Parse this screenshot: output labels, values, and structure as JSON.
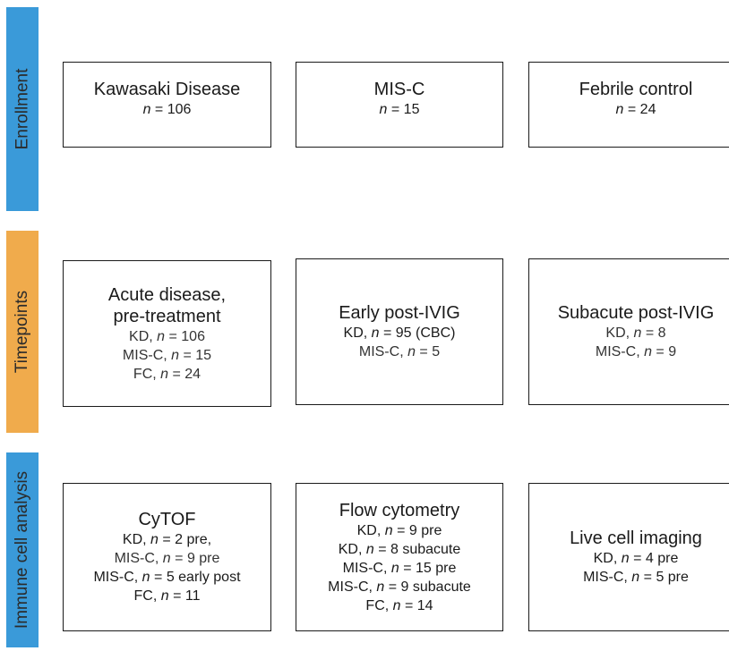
{
  "bands": {
    "enrollment": {
      "label": "Enrollment",
      "color": "#3a9ad9"
    },
    "timepoints": {
      "label": "Timepoints",
      "color": "#f0ab4c"
    },
    "immune": {
      "label": "Immune cell analysis",
      "color": "#3a9ad9"
    }
  },
  "enrollment": [
    {
      "title": "Kawasaki Disease",
      "n": "106"
    },
    {
      "title": "MIS-C",
      "n": "15"
    },
    {
      "title": "Febrile control",
      "n": "24"
    }
  ],
  "timepoints": {
    "acute": {
      "title1": "Acute disease,",
      "title2": "pre-treatment",
      "l1_pre": "KD, ",
      "l1_val": " = 106",
      "l2_pre": "MIS-C, ",
      "l2_val": " = 15",
      "l3_pre": "FC, ",
      "l3_val": " = 24"
    },
    "early": {
      "title": "Early post-IVIG",
      "l1_pre": "KD, ",
      "l1_val": " = 95 (CBC)",
      "l2_pre": "MIS-C, ",
      "l2_val": " = 5"
    },
    "subacute": {
      "title": "Subacute post-IVIG",
      "l1_pre": "KD, ",
      "l1_val": " = 8",
      "l2_pre": "MIS-C, ",
      "l2_val": " = 9"
    }
  },
  "immune": {
    "cytof": {
      "title": "CyTOF",
      "l1_pre": "KD, ",
      "l1_val": " = 2 pre,",
      "l2_pre": "MIS-C, ",
      "l2_val": " = 9 pre",
      "l3_pre": "MIS-C, ",
      "l3_val": " = 5 early post",
      "l4_pre": "FC, ",
      "l4_val": " = 11"
    },
    "flow": {
      "title": "Flow cytometry",
      "l1_pre": "KD, ",
      "l1_val": " = 9 pre",
      "l2_pre": "KD, ",
      "l2_val": " = 8 subacute",
      "l3_pre": "MIS-C, ",
      "l3_val": " = 15 pre",
      "l4_pre": "MIS-C, ",
      "l4_val": " = 9 subacute",
      "l5_pre": "FC, ",
      "l5_val": " = 14"
    },
    "live": {
      "title": "Live cell imaging",
      "l1_pre": "KD, ",
      "l1_val": " = 4 pre",
      "l2_pre": "MIS-C, ",
      "l2_val": " = 5 pre"
    }
  },
  "n_symbol": "n",
  "n_prefix": "n = "
}
